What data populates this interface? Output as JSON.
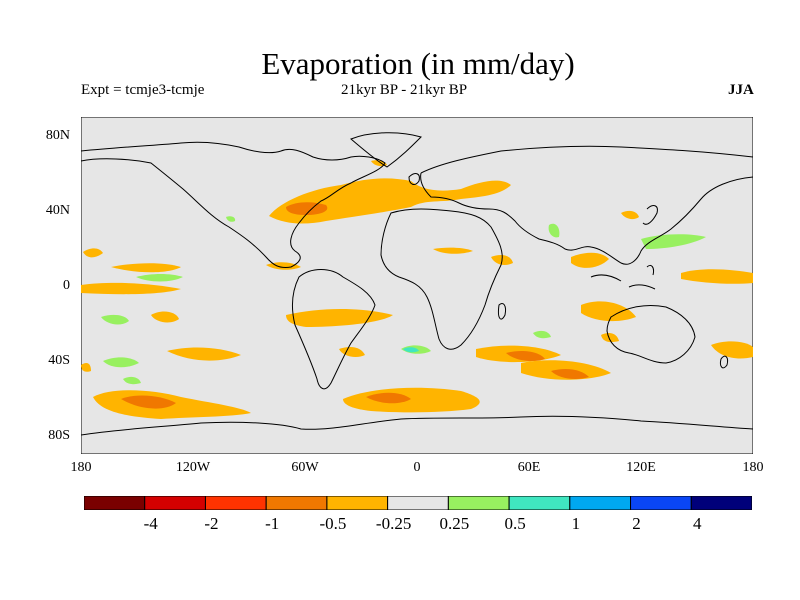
{
  "figure": {
    "title": "Evaporation (in mm/day)",
    "expt": "Expt = tcmje3-tcmje",
    "period": "21kyr BP - 21kyr BP",
    "season": "JJA"
  },
  "map": {
    "projection": "cylindrical-equidistant",
    "lon_range": [
      -180,
      180
    ],
    "lat_range": [
      -90,
      90
    ],
    "background_color": "#e6e6e6",
    "y_ticks": [
      "80N",
      "40N",
      "0",
      "40S",
      "80S"
    ],
    "x_ticks": [
      "180",
      "120W",
      "60W",
      "0",
      "60E",
      "120E",
      "180"
    ]
  },
  "colorbar": {
    "colors": [
      "#7a0000",
      "#d40000",
      "#ff3300",
      "#f07800",
      "#ffb400",
      "#e6e6e6",
      "#98f060",
      "#40e6c0",
      "#00a8f0",
      "#0a46f5",
      "#00007a"
    ],
    "labels": [
      "-4",
      "-2",
      "-1",
      "-0.5",
      "-0.25",
      "0.25",
      "0.5",
      "1",
      "2",
      "4"
    ]
  },
  "anomaly_regions": [
    {
      "name": "north-atlantic-gulf-stream",
      "level": "-0.25",
      "color": "#ffb400"
    },
    {
      "name": "gulf-stream-core",
      "level": "-0.5",
      "color": "#f07800"
    },
    {
      "name": "southern-ocean-pacific",
      "level": "-0.25",
      "color": "#ffb400"
    },
    {
      "name": "southern-ocean-pacific-core",
      "level": "-0.5",
      "color": "#f07800"
    },
    {
      "name": "southern-ocean-atlantic",
      "level": "-0.25",
      "color": "#ffb400"
    },
    {
      "name": "southern-ocean-atlantic-core",
      "level": "-1",
      "color": "#ff3300"
    },
    {
      "name": "southern-indian-ocean",
      "level": "-0.5",
      "color": "#f07800"
    },
    {
      "name": "western-pacific-warm-pool",
      "level": "0.5",
      "color": "#98f060"
    },
    {
      "name": "tibet",
      "level": "0.5",
      "color": "#98f060"
    },
    {
      "name": "equatorial-pacific",
      "level": "-0.25",
      "color": "#ffb400"
    }
  ]
}
